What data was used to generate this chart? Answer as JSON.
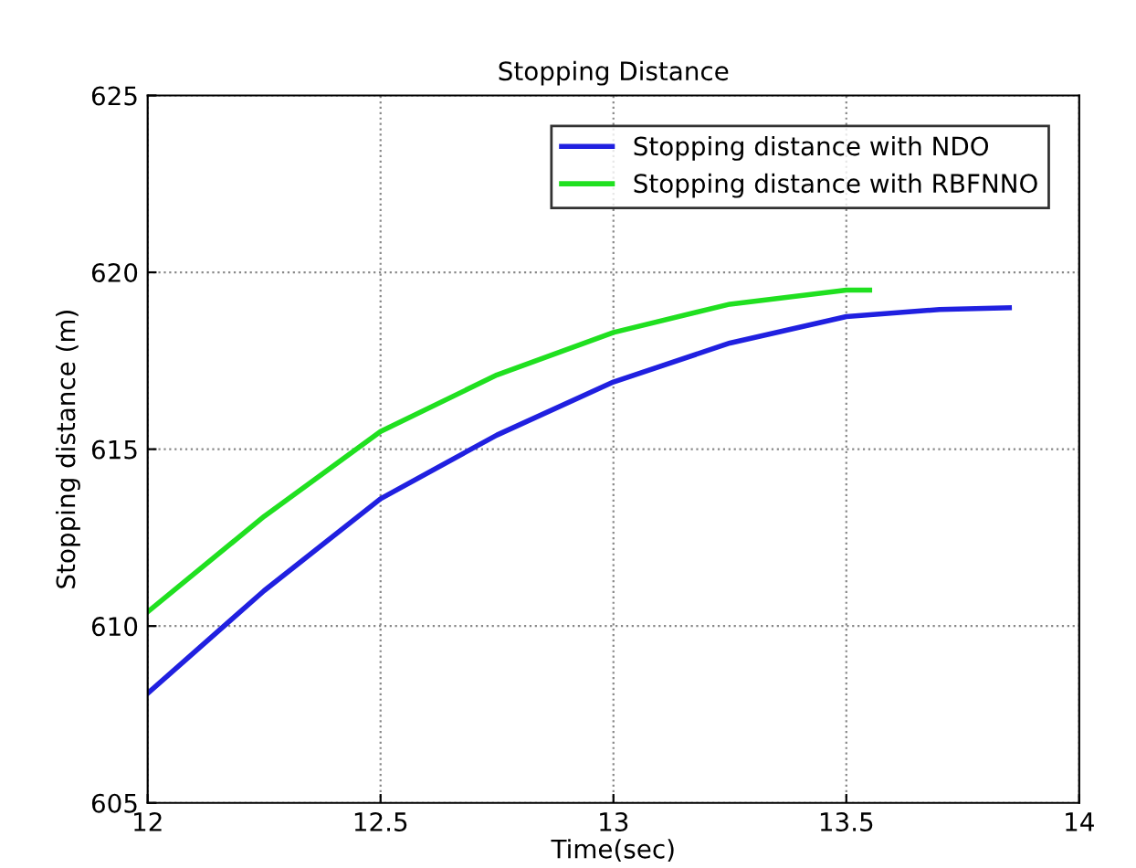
{
  "chart_data": {
    "type": "line",
    "title": "Stopping Distance",
    "xlabel": "Time(sec)",
    "ylabel": "Stopping distance (m)",
    "xlim": [
      12,
      14
    ],
    "xticks": [
      12,
      12.5,
      13,
      13.5,
      14
    ],
    "ylim": [
      605,
      625
    ],
    "yticks": [
      605,
      610,
      615,
      620,
      625
    ],
    "grid": true,
    "legend": "top right",
    "line_style": "solid",
    "series": [
      {
        "name": "Stopping distance with NDO",
        "color": "#2020e0",
        "x": [
          12,
          12.25,
          12.5,
          12.75,
          13,
          13.25,
          13.5,
          13.7,
          13.85
        ],
        "values": [
          608.1,
          611.0,
          613.6,
          615.4,
          616.9,
          618.0,
          618.75,
          618.95,
          619.0
        ]
      },
      {
        "name": "Stopping distance with RBFNNO",
        "color": "#20e020",
        "x": [
          12,
          12.25,
          12.5,
          12.75,
          13,
          13.25,
          13.5,
          13.55
        ],
        "values": [
          610.4,
          613.1,
          615.5,
          617.1,
          618.3,
          619.1,
          619.5,
          619.5
        ]
      }
    ]
  }
}
